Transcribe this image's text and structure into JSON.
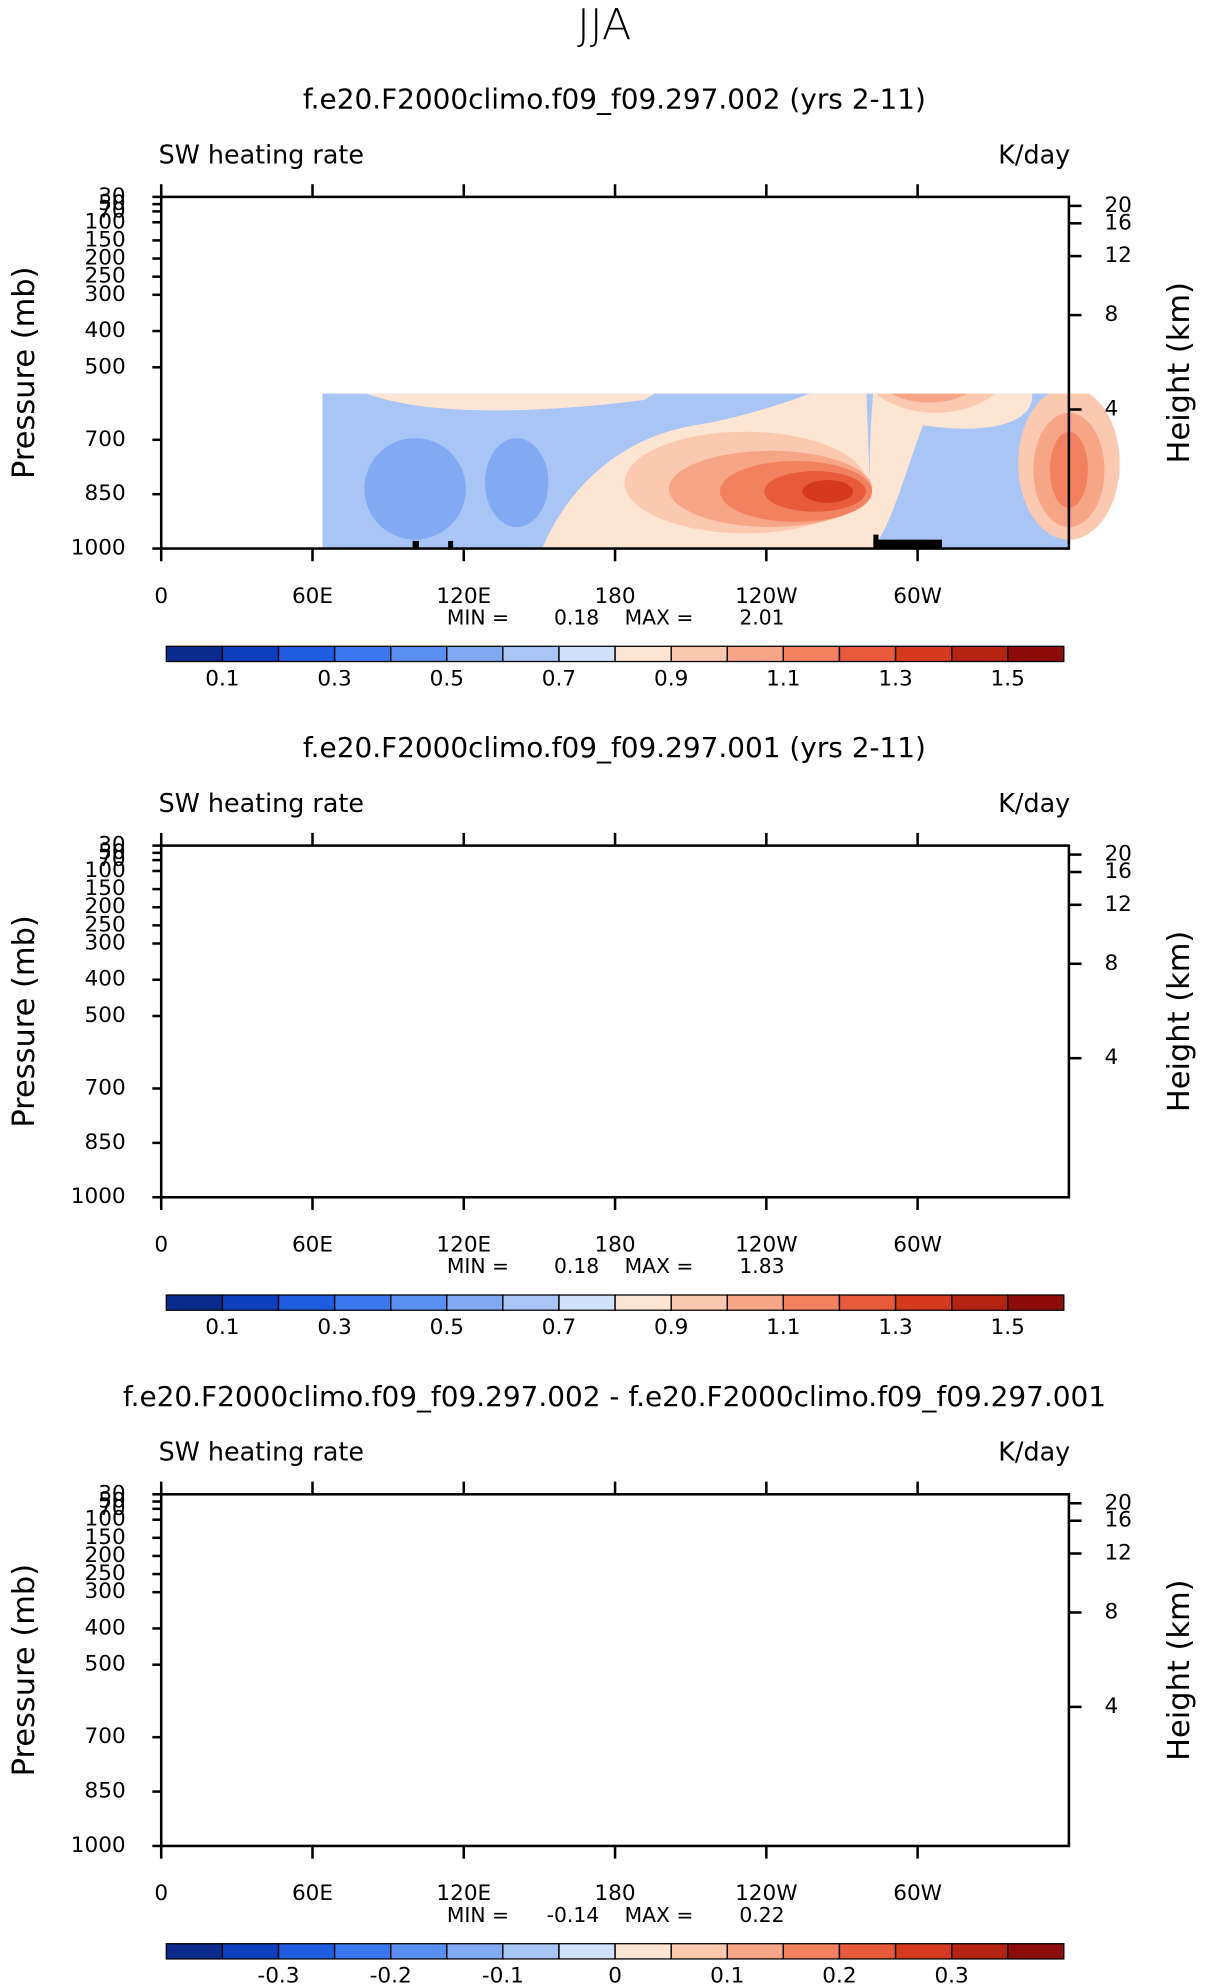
{
  "title": "JJA",
  "chart_data": [
    {
      "type": "contour",
      "title": "f.e20.F2000climo.f09_f09.297.002 (yrs 2-11)",
      "left_string": "SW heating rate",
      "right_string": "K/day",
      "ylabel": "Pressure (mb)",
      "y2label": "Height (km)",
      "xlim": [
        0,
        360
      ],
      "xticks": [
        0,
        {
          "value": 60,
          "label": "60E"
        },
        {
          "value": 120,
          "label": "120E"
        },
        180,
        {
          "value": 240,
          "label": "120W"
        },
        {
          "value": 300,
          "label": "60W"
        }
      ],
      "ylim": [
        1000,
        30
      ],
      "yticks": [
        30,
        50,
        70,
        100,
        150,
        200,
        250,
        300,
        400,
        500,
        700,
        850,
        1000
      ],
      "y2_scale": "standard-atmosphere",
      "y2ticks": [
        4,
        8,
        12,
        16,
        20
      ],
      "min_label": "MIN =",
      "min": 0.18,
      "max_label": "MAX =",
      "max": 2.01,
      "levels": [
        0.1,
        0.2,
        0.3,
        0.4,
        0.5,
        0.6,
        0.7,
        0.8,
        0.9,
        1.0,
        1.1,
        1.2,
        1.3,
        1.4,
        1.5
      ],
      "colorbar_labels": [
        0.1,
        0.3,
        0.5,
        0.7,
        0.9,
        1.1,
        1.3,
        1.5
      ],
      "colors": [
        "#0a2a8c",
        "#0d3fbf",
        "#1f5de0",
        "#3a78f0",
        "#5a90f2",
        "#82aaf2",
        "#a9c5f5",
        "#d0e2fb",
        "#fde5d3",
        "#fbc9b0",
        "#f7a587",
        "#f2825f",
        "#e85b3a",
        "#d63a1e",
        "#b52312",
        "#8b0c0a"
      ]
    },
    {
      "type": "contour",
      "title": "f.e20.F2000climo.f09_f09.297.001 (yrs 2-11)",
      "left_string": "SW heating rate",
      "right_string": "K/day",
      "ylabel": "Pressure (mb)",
      "y2label": "Height (km)",
      "xlim": [
        0,
        360
      ],
      "xticks": [
        0,
        {
          "value": 60,
          "label": "60E"
        },
        {
          "value": 120,
          "label": "120E"
        },
        180,
        {
          "value": 240,
          "label": "120W"
        },
        {
          "value": 300,
          "label": "60W"
        }
      ],
      "ylim": [
        1000,
        30
      ],
      "yticks": [
        30,
        50,
        70,
        100,
        150,
        200,
        250,
        300,
        400,
        500,
        700,
        850,
        1000
      ],
      "y2_scale": "standard-atmosphere",
      "y2ticks": [
        4,
        8,
        12,
        16,
        20
      ],
      "min_label": "MIN =",
      "min": 0.18,
      "max_label": "MAX =",
      "max": 1.83,
      "levels": [
        0.1,
        0.2,
        0.3,
        0.4,
        0.5,
        0.6,
        0.7,
        0.8,
        0.9,
        1.0,
        1.1,
        1.2,
        1.3,
        1.4,
        1.5
      ],
      "colorbar_labels": [
        0.1,
        0.3,
        0.5,
        0.7,
        0.9,
        1.1,
        1.3,
        1.5
      ],
      "colors": [
        "#0a2a8c",
        "#0d3fbf",
        "#1f5de0",
        "#3a78f0",
        "#5a90f2",
        "#82aaf2",
        "#a9c5f5",
        "#d0e2fb",
        "#fde5d3",
        "#fbc9b0",
        "#f7a587",
        "#f2825f",
        "#e85b3a",
        "#d63a1e",
        "#b52312",
        "#8b0c0a"
      ]
    },
    {
      "type": "contour",
      "title": "f.e20.F2000climo.f09_f09.297.002 - f.e20.F2000climo.f09_f09.297.001",
      "left_string": "SW heating rate",
      "right_string": "K/day",
      "ylabel": "Pressure (mb)",
      "y2label": "Height (km)",
      "xlim": [
        0,
        360
      ],
      "xticks": [
        0,
        {
          "value": 60,
          "label": "60E"
        },
        {
          "value": 120,
          "label": "120E"
        },
        180,
        {
          "value": 240,
          "label": "120W"
        },
        {
          "value": 300,
          "label": "60W"
        }
      ],
      "ylim": [
        1000,
        30
      ],
      "yticks": [
        30,
        50,
        70,
        100,
        150,
        200,
        250,
        300,
        400,
        500,
        700,
        850,
        1000
      ],
      "y2_scale": "standard-atmosphere",
      "y2ticks": [
        4,
        8,
        12,
        16,
        20
      ],
      "min_label": "MIN =",
      "min": -0.14,
      "max_label": "MAX =",
      "max": 0.22,
      "levels": [
        -0.35,
        -0.3,
        -0.25,
        -0.2,
        -0.15,
        -0.1,
        -0.05,
        0,
        0.05,
        0.1,
        0.15,
        0.2,
        0.25,
        0.3,
        0.35
      ],
      "colorbar_labels": [
        -0.3,
        -0.2,
        -0.1,
        0,
        0.1,
        0.2,
        0.3
      ],
      "colors": [
        "#0a2a8c",
        "#0d3fbf",
        "#1f5de0",
        "#3a78f0",
        "#5a90f2",
        "#82aaf2",
        "#a9c5f5",
        "#d0e2fb",
        "#fde5d3",
        "#fbc9b0",
        "#f7a587",
        "#f2825f",
        "#e85b3a",
        "#d63a1e",
        "#b52312",
        "#8b0c0a"
      ]
    }
  ]
}
